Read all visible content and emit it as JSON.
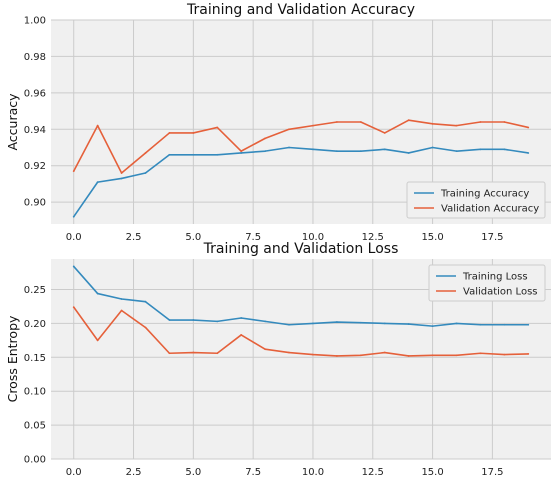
{
  "colors": {
    "background": "#ffffff",
    "axes_bg": "#f0f0f0",
    "grid": "#cbcbcb",
    "training": "#348abd",
    "validation": "#e5603a"
  },
  "chart_data": [
    {
      "type": "line",
      "title": "Training and Validation Accuracy",
      "xlabel": "",
      "ylabel": "Accuracy",
      "xlim": [
        -0.95,
        19.95
      ],
      "ylim": [
        0.888,
        1.0
      ],
      "xticks": [
        0,
        2.5,
        5,
        7.5,
        10,
        12.5,
        15,
        17.5
      ],
      "xtick_labels": [
        "0.0",
        "2.5",
        "5.0",
        "7.5",
        "10.0",
        "12.5",
        "15.0",
        "17.5"
      ],
      "yticks": [
        0.9,
        0.92,
        0.94,
        0.96,
        0.98,
        1.0
      ],
      "ytick_labels": [
        "0.90",
        "0.92",
        "0.94",
        "0.96",
        "0.98",
        "1.00"
      ],
      "grid": true,
      "legend": "lower-right",
      "x": [
        0,
        1,
        2,
        3,
        4,
        5,
        6,
        7,
        8,
        9,
        10,
        11,
        12,
        13,
        14,
        15,
        16,
        17,
        18,
        19
      ],
      "series": [
        {
          "name": "Training Accuracy",
          "color": "#348abd",
          "values": [
            0.892,
            0.911,
            0.913,
            0.916,
            0.926,
            0.926,
            0.926,
            0.927,
            0.928,
            0.93,
            0.929,
            0.928,
            0.928,
            0.929,
            0.927,
            0.93,
            0.928,
            0.929,
            0.929,
            0.927
          ]
        },
        {
          "name": "Validation Accuracy",
          "color": "#e5603a",
          "values": [
            0.917,
            0.942,
            0.916,
            0.927,
            0.938,
            0.938,
            0.941,
            0.928,
            0.935,
            0.94,
            0.942,
            0.944,
            0.944,
            0.938,
            0.945,
            0.943,
            0.942,
            0.944,
            0.944,
            0.941
          ]
        }
      ]
    },
    {
      "type": "line",
      "title": "Training and Validation Loss",
      "xlabel": "",
      "ylabel": "Cross Entropy",
      "xlim": [
        -0.95,
        19.95
      ],
      "ylim": [
        0.0,
        0.295
      ],
      "xticks": [
        0,
        2.5,
        5,
        7.5,
        10,
        12.5,
        15,
        17.5
      ],
      "xtick_labels": [
        "0.0",
        "2.5",
        "5.0",
        "7.5",
        "10.0",
        "12.5",
        "15.0",
        "17.5"
      ],
      "yticks": [
        0.0,
        0.05,
        0.1,
        0.15,
        0.2,
        0.25
      ],
      "ytick_labels": [
        "0.00",
        "0.05",
        "0.10",
        "0.15",
        "0.20",
        "0.25"
      ],
      "grid": true,
      "legend": "top-right",
      "x": [
        0,
        1,
        2,
        3,
        4,
        5,
        6,
        7,
        8,
        9,
        10,
        11,
        12,
        13,
        14,
        15,
        16,
        17,
        18,
        19
      ],
      "series": [
        {
          "name": "Training Loss",
          "color": "#348abd",
          "values": [
            0.284,
            0.244,
            0.236,
            0.232,
            0.205,
            0.205,
            0.203,
            0.208,
            0.203,
            0.198,
            0.2,
            0.202,
            0.201,
            0.2,
            0.199,
            0.196,
            0.2,
            0.198,
            0.198,
            0.198
          ]
        },
        {
          "name": "Validation Loss",
          "color": "#e5603a",
          "values": [
            0.224,
            0.175,
            0.219,
            0.194,
            0.156,
            0.157,
            0.156,
            0.183,
            0.162,
            0.157,
            0.154,
            0.152,
            0.153,
            0.157,
            0.152,
            0.153,
            0.153,
            0.156,
            0.154,
            0.155
          ]
        }
      ]
    }
  ]
}
